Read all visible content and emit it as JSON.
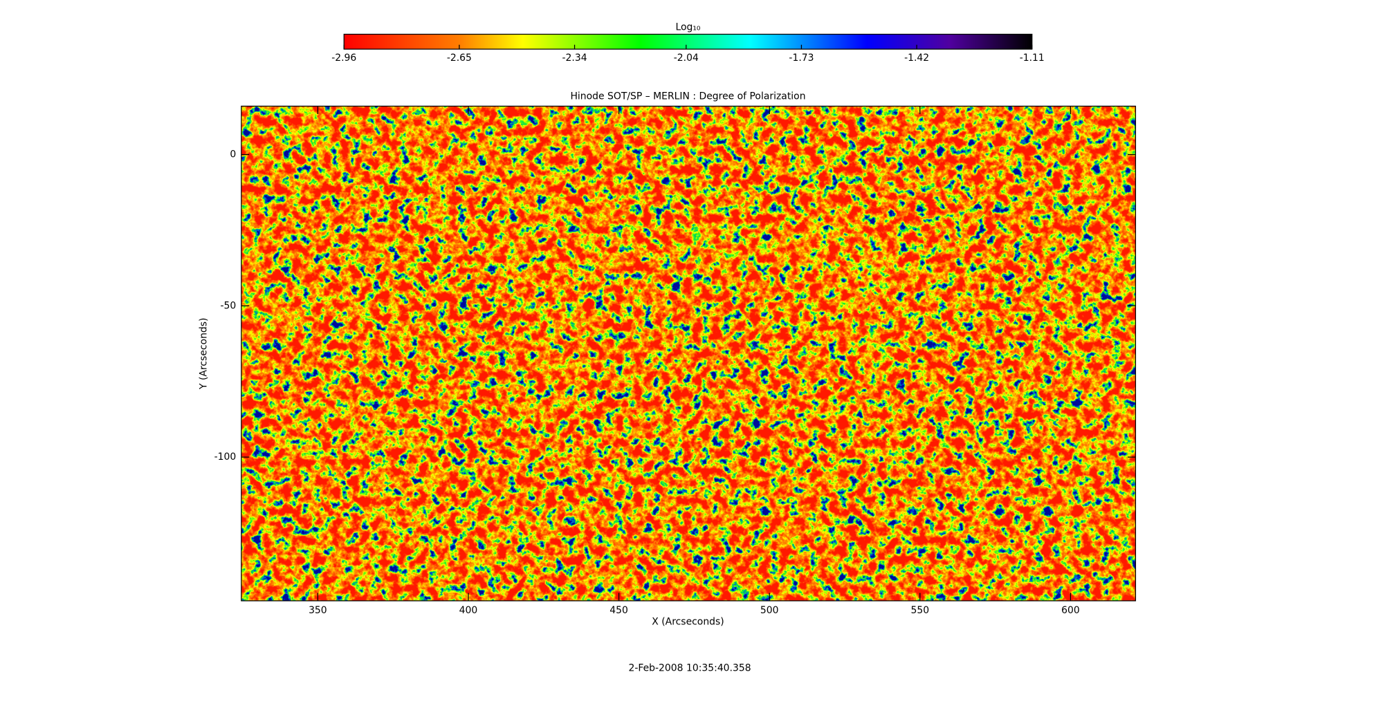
{
  "chart_data": {
    "type": "heatmap",
    "title": "Hinode SOT/SP – MERLIN : Degree of Polarization",
    "xlabel": "X (Arcseconds)",
    "ylabel": "Y (Arcseconds)",
    "xlim": [
      324.6,
      621.6
    ],
    "xticks": [
      350,
      400,
      450,
      500,
      550,
      600
    ],
    "ylim": [
      -147.5,
      16
    ],
    "yticks": [
      0,
      -50,
      -100
    ],
    "colorbar": {
      "label": "Log₁₀",
      "lim": [
        -2.96,
        -1.11
      ],
      "ticks": [
        -2.96,
        -2.65,
        -2.34,
        -2.04,
        -1.73,
        -1.42,
        -1.11
      ]
    }
  },
  "footer": "2-Feb-2008 10:35:40.358"
}
